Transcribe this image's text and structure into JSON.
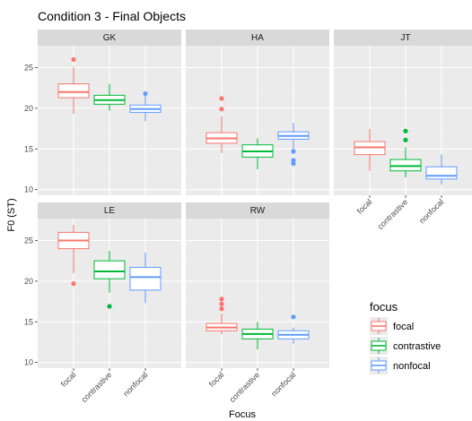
{
  "chart_data": {
    "type": "boxplot",
    "title": "Condition 3 - Final Objects",
    "xlabel": "Focus",
    "ylabel": "F0 (ST)",
    "categories": [
      "focal",
      "contrastive",
      "nonfocal"
    ],
    "ylim": [
      9.3,
      27.7
    ],
    "yticks": [
      10,
      15,
      20,
      25
    ],
    "grid": true,
    "legend": {
      "title": "focus",
      "position": "bottom-right",
      "entries": [
        "focal",
        "contrastive",
        "nonfocal"
      ]
    },
    "colors": {
      "focal": "#F8766D",
      "contrastive": "#00BA38",
      "nonfocal": "#619CFF",
      "panel_bg": "#EBEBEB",
      "strip_bg": "#D9D9D9",
      "grid_major": "#FFFFFF",
      "grid_minor": "#F2F2F2"
    },
    "panels": [
      {
        "name": "GK",
        "boxes": [
          {
            "group": "focal",
            "whisker_low": 19.3,
            "q1": 21.3,
            "median": 22.0,
            "q3": 23.0,
            "whisker_high": 25.1,
            "outliers": [
              26.0
            ]
          },
          {
            "group": "contrastive",
            "whisker_low": 19.7,
            "q1": 20.5,
            "median": 21.0,
            "q3": 21.6,
            "whisker_high": 23.0,
            "outliers": []
          },
          {
            "group": "nonfocal",
            "whisker_low": 18.4,
            "q1": 19.5,
            "median": 19.9,
            "q3": 20.4,
            "whisker_high": 21.5,
            "outliers": [
              21.8
            ]
          }
        ]
      },
      {
        "name": "HA",
        "boxes": [
          {
            "group": "focal",
            "whisker_low": 14.5,
            "q1": 15.7,
            "median": 16.3,
            "q3": 17.0,
            "whisker_high": 19.0,
            "outliers": [
              19.9,
              21.2
            ]
          },
          {
            "group": "contrastive",
            "whisker_low": 12.5,
            "q1": 14.0,
            "median": 14.7,
            "q3": 15.5,
            "whisker_high": 16.3,
            "outliers": []
          },
          {
            "group": "nonfocal",
            "whisker_low": 15.0,
            "q1": 16.2,
            "median": 16.6,
            "q3": 17.1,
            "whisker_high": 18.2,
            "outliers": [
              14.7,
              13.6,
              13.2
            ]
          }
        ]
      },
      {
        "name": "JT",
        "boxes": [
          {
            "group": "focal",
            "whisker_low": 12.3,
            "q1": 14.3,
            "median": 15.2,
            "q3": 15.9,
            "whisker_high": 17.5,
            "outliers": []
          },
          {
            "group": "contrastive",
            "whisker_low": 11.5,
            "q1": 12.3,
            "median": 12.9,
            "q3": 13.7,
            "whisker_high": 15.2,
            "outliers": [
              16.1,
              17.2
            ]
          },
          {
            "group": "nonfocal",
            "whisker_low": 10.6,
            "q1": 11.3,
            "median": 11.7,
            "q3": 12.8,
            "whisker_high": 14.3,
            "outliers": []
          }
        ]
      },
      {
        "name": "LE",
        "boxes": [
          {
            "group": "focal",
            "whisker_low": 21.0,
            "q1": 24.0,
            "median": 25.0,
            "q3": 26.0,
            "whisker_high": 26.9,
            "outliers": [
              19.7
            ]
          },
          {
            "group": "contrastive",
            "whisker_low": 18.6,
            "q1": 20.3,
            "median": 21.2,
            "q3": 22.5,
            "whisker_high": 23.7,
            "outliers": [
              16.9
            ]
          },
          {
            "group": "nonfocal",
            "whisker_low": 17.3,
            "q1": 18.9,
            "median": 20.5,
            "q3": 21.7,
            "whisker_high": 23.5,
            "outliers": []
          }
        ]
      },
      {
        "name": "RW",
        "boxes": [
          {
            "group": "focal",
            "whisker_low": 13.5,
            "q1": 13.9,
            "median": 14.3,
            "q3": 14.8,
            "whisker_high": 16.0,
            "outliers": [
              16.6,
              17.2,
              17.8
            ]
          },
          {
            "group": "contrastive",
            "whisker_low": 11.6,
            "q1": 12.9,
            "median": 13.5,
            "q3": 14.1,
            "whisker_high": 15.0,
            "outliers": []
          },
          {
            "group": "nonfocal",
            "whisker_low": 12.3,
            "q1": 12.9,
            "median": 13.4,
            "q3": 13.9,
            "whisker_high": 14.3,
            "outliers": [
              15.6
            ]
          }
        ]
      }
    ]
  }
}
